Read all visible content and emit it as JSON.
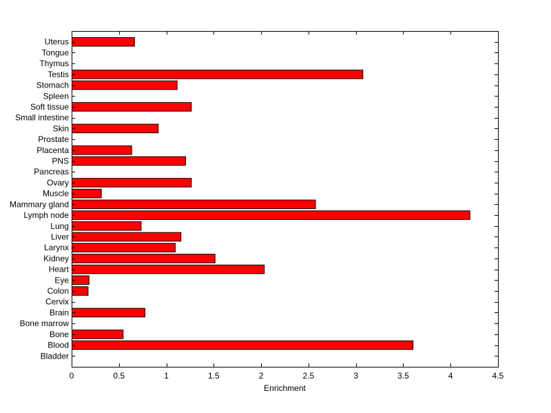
{
  "chart_data": {
    "type": "bar",
    "orientation": "horizontal",
    "categories": [
      "Bladder",
      "Blood",
      "Bone",
      "Bone marrow",
      "Brain",
      "Cervix",
      "Colon",
      "Eye",
      "Heart",
      "Kidney",
      "Larynx",
      "Liver",
      "Lung",
      "Lymph node",
      "Mammary gland",
      "Muscle",
      "Ovary",
      "Pancreas",
      "PNS",
      "Placenta",
      "Prostate",
      "Skin",
      "Small intestine",
      "Soft tissue",
      "Spleen",
      "Stomach",
      "Testis",
      "Thymus",
      "Tongue",
      "Uterus"
    ],
    "values": [
      0,
      3.6,
      0.54,
      0,
      0.77,
      0,
      0.17,
      0.18,
      2.03,
      1.51,
      1.09,
      1.15,
      0.73,
      4.2,
      2.57,
      0.31,
      1.26,
      0,
      1.2,
      0.63,
      0,
      0.91,
      0,
      1.26,
      0,
      1.11,
      3.07,
      0,
      0,
      0.66
    ],
    "xlabel": "Enrichment",
    "ylabel": "",
    "title": "",
    "xlim": [
      0,
      4.5
    ],
    "xticks": [
      "0",
      "0.5",
      "1",
      "1.5",
      "2",
      "2.5",
      "3",
      "3.5",
      "4",
      "4.5"
    ],
    "grid": false,
    "bar_color": "#ff0000",
    "edge_color": "#000000"
  }
}
